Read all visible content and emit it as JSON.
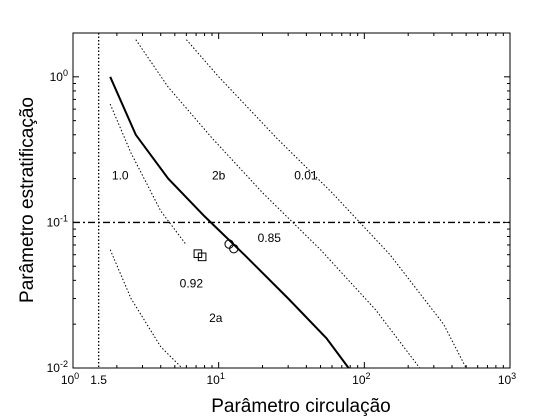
{
  "chart_data": {
    "type": "line",
    "xlabel": "Parâmetro circulação",
    "ylabel": "Parâmetro estratificação",
    "xscale": "log",
    "yscale": "log",
    "xlim": [
      1,
      1000
    ],
    "ylim": [
      0.01,
      2
    ],
    "grid": false,
    "x_ticks": [
      {
        "value": 1,
        "base": "10",
        "exp": "0"
      },
      {
        "value": 10,
        "base": "10",
        "exp": "1"
      },
      {
        "value": 100,
        "base": "10",
        "exp": "2"
      },
      {
        "value": 1000,
        "base": "10",
        "exp": "3"
      }
    ],
    "y_ticks": [
      {
        "value": 0.01,
        "base": "10",
        "exp": "-2"
      },
      {
        "value": 0.1,
        "base": "10",
        "exp": "-1"
      },
      {
        "value": 1,
        "base": "10",
        "exp": "0"
      }
    ],
    "extra_x_tick_label": {
      "value": 1.5,
      "text": "1.5"
    },
    "series": [
      {
        "style": "solid",
        "x": [
          1.8,
          2.7,
          4.5,
          8.0,
          15,
          30,
          55,
          78
        ],
        "y": [
          1.0,
          0.4,
          0.2,
          0.11,
          0.06,
          0.03,
          0.016,
          0.01
        ]
      },
      {
        "style": "dotted",
        "x": [
          1.8,
          2.5,
          4.0,
          6.0
        ],
        "y": [
          0.65,
          0.3,
          0.12,
          0.07
        ]
      },
      {
        "style": "dotted",
        "x": [
          1.8,
          2.5,
          4.0,
          5.6
        ],
        "y": [
          0.065,
          0.03,
          0.014,
          0.01
        ]
      },
      {
        "style": "dotted",
        "x": [
          2.7,
          4.5,
          9,
          20,
          50,
          120,
          240
        ],
        "y": [
          1.8,
          0.85,
          0.38,
          0.16,
          0.065,
          0.025,
          0.01
        ]
      },
      {
        "style": "dotted",
        "x": [
          6.0,
          10,
          25,
          60,
          150,
          350,
          500
        ],
        "y": [
          1.8,
          1.0,
          0.38,
          0.16,
          0.06,
          0.02,
          0.01
        ]
      }
    ],
    "reference_lines": [
      {
        "orientation": "horizontal",
        "value": 0.1,
        "style": "dashdot"
      },
      {
        "orientation": "vertical",
        "value": 1.5,
        "style": "dotted"
      }
    ],
    "markers": [
      {
        "shape": "circle",
        "x": 11.8,
        "y": 0.071
      },
      {
        "shape": "circle",
        "x": 12.7,
        "y": 0.066
      },
      {
        "shape": "square",
        "x": 7.2,
        "y": 0.061
      },
      {
        "shape": "square",
        "x": 7.7,
        "y": 0.058
      }
    ],
    "annotations": [
      {
        "text": "1.0",
        "x": 1.85,
        "y": 0.21
      },
      {
        "text": "2b",
        "x": 9.0,
        "y": 0.21
      },
      {
        "text": "0.01",
        "x": 33,
        "y": 0.21
      },
      {
        "text": "0.85",
        "x": 18.5,
        "y": 0.078
      },
      {
        "text": "0.92",
        "x": 5.4,
        "y": 0.038
      },
      {
        "text": "2a",
        "x": 8.6,
        "y": 0.022
      }
    ]
  }
}
